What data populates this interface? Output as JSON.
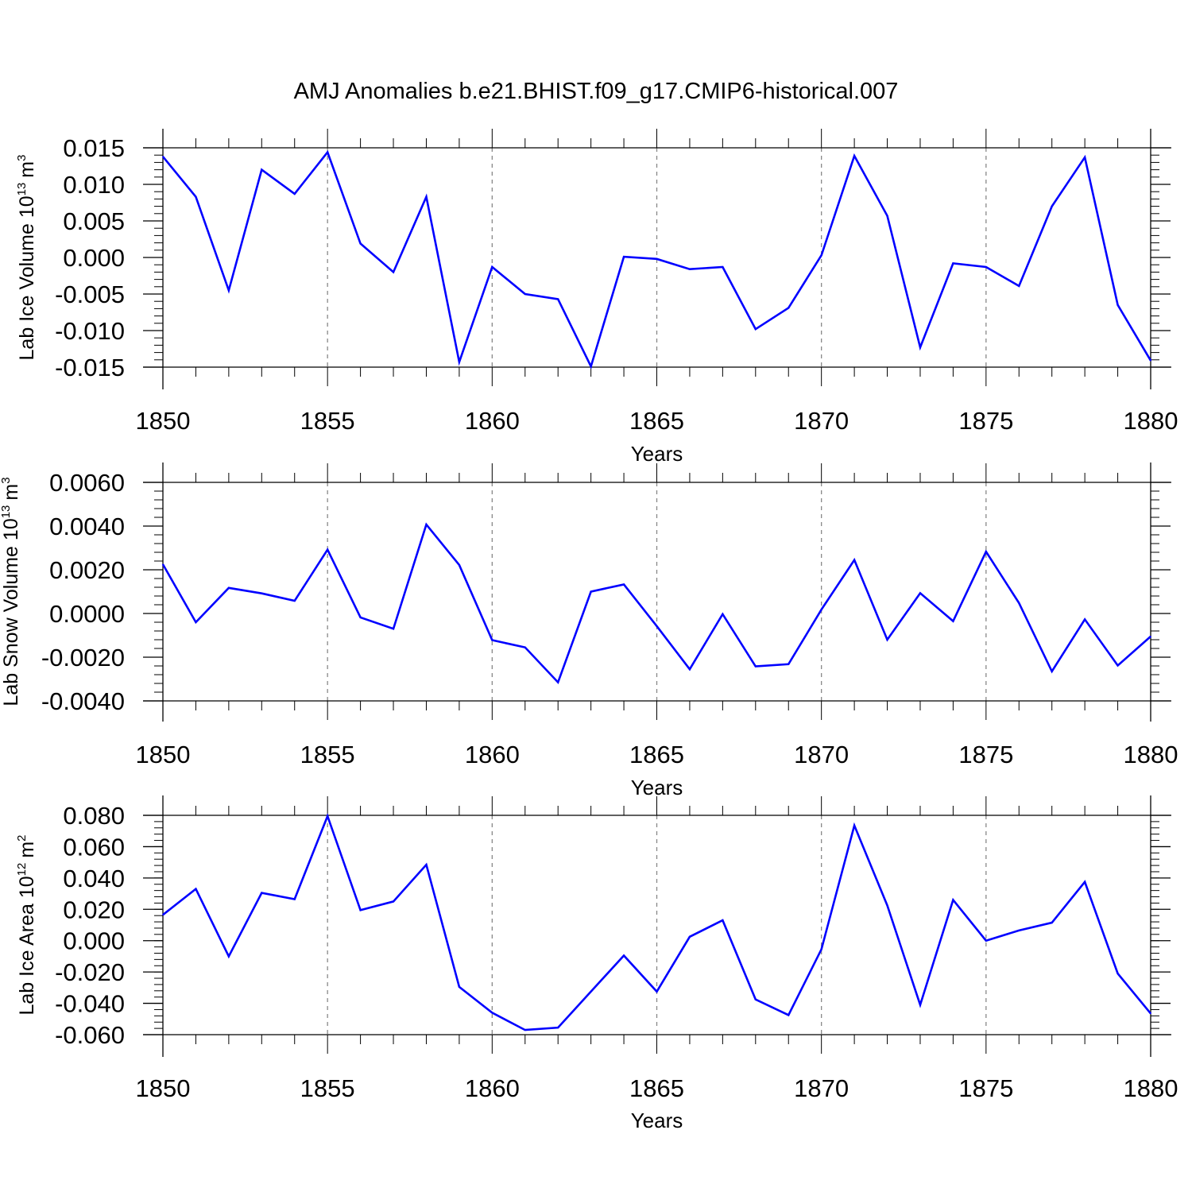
{
  "chart_data": {
    "type": "line",
    "title": "AMJ Anomalies b.e21.BHIST.f09_g17.CMIP6-historical.007",
    "line_color": "#0000ff",
    "grid_color": "#888888",
    "x": [
      1850,
      1851,
      1852,
      1853,
      1854,
      1855,
      1856,
      1857,
      1858,
      1859,
      1860,
      1861,
      1862,
      1863,
      1864,
      1865,
      1866,
      1867,
      1868,
      1869,
      1870,
      1871,
      1872,
      1873,
      1874,
      1875,
      1876,
      1877,
      1878,
      1879,
      1880
    ],
    "xlim": [
      1850,
      1880
    ],
    "xticks": [
      1850,
      1855,
      1860,
      1865,
      1870,
      1875,
      1880
    ],
    "xtick_labels": [
      "1850",
      "1855",
      "1860",
      "1865",
      "1870",
      "1875",
      "1880"
    ],
    "grid": "vertical dashed at major x ticks",
    "panels": [
      {
        "ylabel": "Lab Ice Volume 10",
        "ylabel_exp": "13",
        "ylabel_unit": "m",
        "ylabel_unit_exp": "3",
        "xlabel": "Years",
        "ylim": [
          -0.015,
          0.015
        ],
        "yticks": [
          0.015,
          0.01,
          0.005,
          0.0,
          -0.005,
          -0.01,
          -0.015
        ],
        "ytick_labels": [
          "0.015",
          "0.010",
          "0.005",
          "0.000",
          "-0.005",
          "-0.010",
          "-0.015"
        ],
        "minor_step": 0.001,
        "values": [
          0.0138,
          0.0083,
          -0.0045,
          0.012,
          0.0087,
          0.0144,
          0.0019,
          -0.002,
          0.0083,
          -0.0143,
          -0.0013,
          -0.005,
          -0.0057,
          -0.0149,
          0.0001,
          -0.0002,
          -0.0016,
          -0.0013,
          -0.0098,
          -0.0069,
          0.0003,
          0.0139,
          0.0057,
          -0.0123,
          -0.0008,
          -0.0013,
          -0.0039,
          0.007,
          0.0137,
          -0.0065,
          -0.0141
        ]
      },
      {
        "ylabel": "Lab Snow Volume 10",
        "ylabel_exp": "13",
        "ylabel_unit": "m",
        "ylabel_unit_exp": "3",
        "xlabel": "Years",
        "ylim": [
          -0.004,
          0.006
        ],
        "yticks": [
          0.006,
          0.004,
          0.002,
          0.0,
          -0.002,
          -0.004
        ],
        "ytick_labels": [
          "0.0060",
          "0.0040",
          "0.0020",
          "0.0000",
          "-0.0020",
          "-0.0040"
        ],
        "minor_step": 0.0004,
        "values": [
          0.00225,
          -0.0004,
          0.00117,
          0.00092,
          0.00058,
          0.00292,
          -0.00018,
          -0.0007,
          0.00407,
          0.00222,
          -0.00122,
          -0.00155,
          -0.00315,
          0.001,
          0.00133,
          -0.00058,
          -0.00255,
          -3e-05,
          -0.00242,
          -0.00232,
          0.00018,
          0.00245,
          -0.0012,
          0.00093,
          -0.00035,
          0.00283,
          0.00048,
          -0.00265,
          -0.00027,
          -0.00238,
          -0.00105
        ]
      },
      {
        "ylabel": "Lab Ice Area 10",
        "ylabel_exp": "12",
        "ylabel_unit": "m",
        "ylabel_unit_exp": "2",
        "xlabel": "Years",
        "ylim": [
          -0.06,
          0.08
        ],
        "yticks": [
          0.08,
          0.06,
          0.04,
          0.02,
          0.0,
          -0.02,
          -0.04,
          -0.06
        ],
        "ytick_labels": [
          "0.080",
          "0.060",
          "0.040",
          "0.020",
          "0.000",
          "-0.020",
          "-0.040",
          "-0.060"
        ],
        "minor_step": 0.004,
        "values": [
          0.0165,
          0.033,
          -0.01,
          0.0305,
          0.0265,
          0.0795,
          0.0195,
          0.025,
          0.0485,
          -0.0295,
          -0.046,
          -0.057,
          -0.0555,
          -0.0325,
          -0.0095,
          -0.0325,
          0.0025,
          0.013,
          -0.0375,
          -0.0475,
          -0.0055,
          0.0735,
          0.0225,
          -0.041,
          0.026,
          0.0,
          0.0065,
          0.0115,
          0.0375,
          -0.021,
          -0.0465
        ]
      }
    ]
  }
}
